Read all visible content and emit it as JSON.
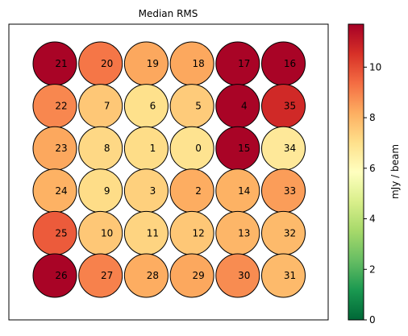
{
  "chart_data": {
    "type": "heatmap",
    "title": "Median RMS",
    "colorbar": {
      "label": "mJy / beam",
      "min": 0,
      "max": 11.7,
      "ticks": [
        0,
        2,
        4,
        6,
        8,
        10
      ],
      "tick_labels": [
        "0",
        "2",
        "4",
        "6",
        "8",
        "10"
      ],
      "colormap": "RdYlGn_r"
    },
    "grid": false,
    "rows": 6,
    "cols": 6,
    "cells": [
      {
        "label": "21",
        "row": 0,
        "col": 0,
        "value": 11.6
      },
      {
        "label": "20",
        "row": 0,
        "col": 1,
        "value": 9.2
      },
      {
        "label": "19",
        "row": 0,
        "col": 2,
        "value": 8.3
      },
      {
        "label": "18",
        "row": 0,
        "col": 3,
        "value": 8.3
      },
      {
        "label": "17",
        "row": 0,
        "col": 4,
        "value": 11.6
      },
      {
        "label": "16",
        "row": 0,
        "col": 5,
        "value": 11.6
      },
      {
        "label": "22",
        "row": 1,
        "col": 0,
        "value": 8.9
      },
      {
        "label": "7",
        "row": 1,
        "col": 1,
        "value": 7.6
      },
      {
        "label": "6",
        "row": 1,
        "col": 2,
        "value": 7.0
      },
      {
        "label": "5",
        "row": 1,
        "col": 3,
        "value": 7.5
      },
      {
        "label": "4",
        "row": 1,
        "col": 4,
        "value": 11.6
      },
      {
        "label": "35",
        "row": 1,
        "col": 5,
        "value": 10.7
      },
      {
        "label": "23",
        "row": 2,
        "col": 0,
        "value": 8.3
      },
      {
        "label": "8",
        "row": 2,
        "col": 1,
        "value": 7.2
      },
      {
        "label": "1",
        "row": 2,
        "col": 2,
        "value": 7.1
      },
      {
        "label": "0",
        "row": 2,
        "col": 3,
        "value": 6.9
      },
      {
        "label": "15",
        "row": 2,
        "col": 4,
        "value": 11.6
      },
      {
        "label": "34",
        "row": 2,
        "col": 5,
        "value": 6.7
      },
      {
        "label": "24",
        "row": 3,
        "col": 0,
        "value": 8.1
      },
      {
        "label": "9",
        "row": 3,
        "col": 1,
        "value": 7.1
      },
      {
        "label": "3",
        "row": 3,
        "col": 2,
        "value": 7.4
      },
      {
        "label": "2",
        "row": 3,
        "col": 3,
        "value": 8.2
      },
      {
        "label": "14",
        "row": 3,
        "col": 4,
        "value": 8.1
      },
      {
        "label": "33",
        "row": 3,
        "col": 5,
        "value": 8.5
      },
      {
        "label": "25",
        "row": 4,
        "col": 0,
        "value": 9.7
      },
      {
        "label": "10",
        "row": 4,
        "col": 1,
        "value": 7.6
      },
      {
        "label": "11",
        "row": 4,
        "col": 2,
        "value": 7.3
      },
      {
        "label": "12",
        "row": 4,
        "col": 3,
        "value": 7.6
      },
      {
        "label": "13",
        "row": 4,
        "col": 4,
        "value": 8.0
      },
      {
        "label": "32",
        "row": 4,
        "col": 5,
        "value": 7.9
      },
      {
        "label": "26",
        "row": 5,
        "col": 0,
        "value": 11.6
      },
      {
        "label": "27",
        "row": 5,
        "col": 1,
        "value": 9.0
      },
      {
        "label": "28",
        "row": 5,
        "col": 2,
        "value": 8.2
      },
      {
        "label": "29",
        "row": 5,
        "col": 3,
        "value": 8.3
      },
      {
        "label": "30",
        "row": 5,
        "col": 4,
        "value": 8.8
      },
      {
        "label": "31",
        "row": 5,
        "col": 5,
        "value": 7.9
      }
    ]
  }
}
